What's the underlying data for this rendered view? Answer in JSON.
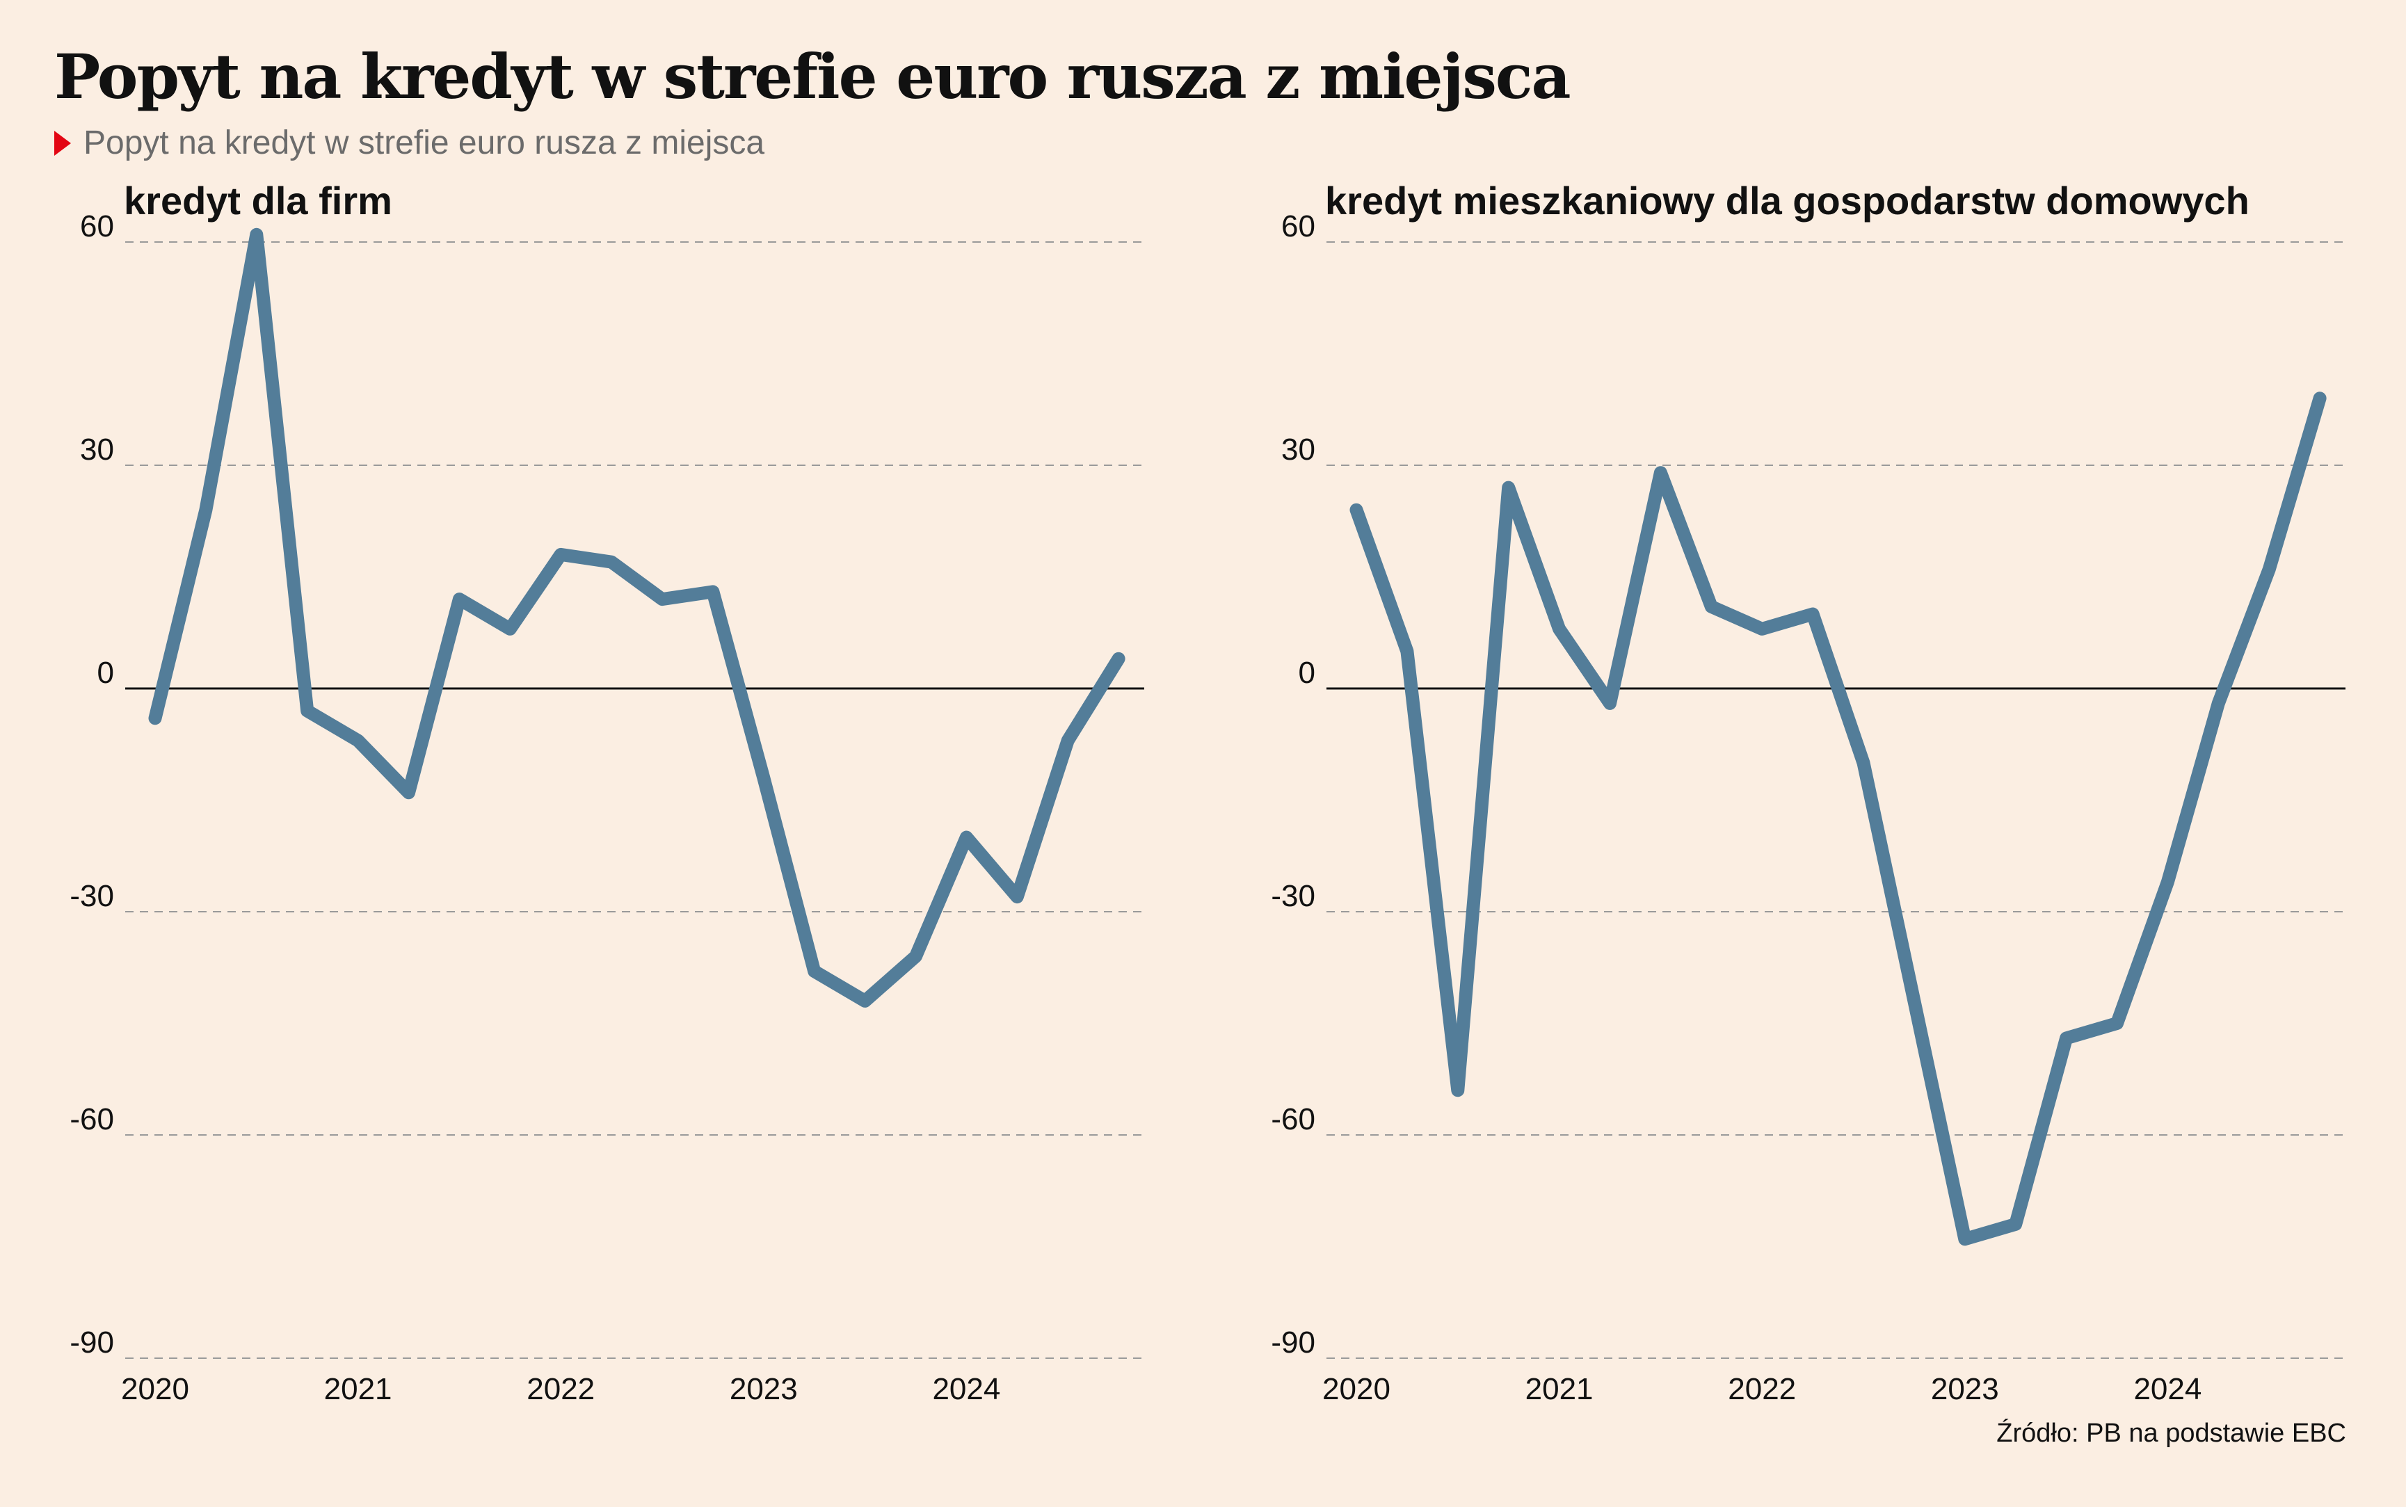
{
  "header": {
    "title": "Popyt na kredyt w strefie euro rusza z miejsca",
    "subtitle": "Popyt na kredyt w strefie euro rusza z miejsca"
  },
  "source": "Źródło: PB na podstawie EBC",
  "colors": {
    "background": "#FBEEE2",
    "line": "#537D99",
    "marker": "#E30613",
    "grid": "#9A9A9A",
    "zero_line": "#111111"
  },
  "chart_data": [
    {
      "type": "line",
      "title": "kredyt dla firm",
      "x_tick_labels": [
        "2020",
        "2021",
        "2022",
        "2023",
        "2024"
      ],
      "y_ticks": [
        60,
        30,
        0,
        -30,
        -60,
        -90
      ],
      "ylim": [
        -90,
        60
      ],
      "grid": "dashed horizontal",
      "series": [
        {
          "x": [
            "2020Q1",
            "2020Q2",
            "2020Q3",
            "2020Q4",
            "2021Q1",
            "2021Q2",
            "2021Q3",
            "2021Q4",
            "2022Q1",
            "2022Q2",
            "2022Q3",
            "2022Q4",
            "2023Q1",
            "2023Q2",
            "2023Q3",
            "2023Q4",
            "2024Q1",
            "2024Q2",
            "2024Q3",
            "2024Q4"
          ],
          "values": [
            -4,
            24,
            61,
            -3,
            -7,
            -14,
            12,
            8,
            18,
            17,
            12,
            13,
            -12,
            -38,
            -42,
            -36,
            -20,
            -28,
            -7,
            4
          ]
        }
      ]
    },
    {
      "type": "line",
      "title": "kredyt mieszkaniowy dla gospodarstw domowych",
      "x_tick_labels": [
        "2020",
        "2021",
        "2022",
        "2023",
        "2024"
      ],
      "y_ticks": [
        60,
        30,
        0,
        -30,
        -60,
        -90
      ],
      "ylim": [
        -90,
        60
      ],
      "grid": "dashed horizontal",
      "series": [
        {
          "x": [
            "2020Q1",
            "2020Q2",
            "2020Q3",
            "2020Q4",
            "2021Q1",
            "2021Q2",
            "2021Q3",
            "2021Q4",
            "2022Q1",
            "2022Q2",
            "2022Q3",
            "2022Q4",
            "2023Q1",
            "2023Q2",
            "2023Q3",
            "2023Q4",
            "2024Q1",
            "2024Q2",
            "2024Q3",
            "2024Q4"
          ],
          "values": [
            24,
            5,
            -54,
            27,
            8,
            -2,
            29,
            11,
            8,
            10,
            -10,
            -42,
            -74,
            -72,
            -47,
            -45,
            -26,
            -2,
            16,
            39
          ]
        }
      ]
    }
  ]
}
